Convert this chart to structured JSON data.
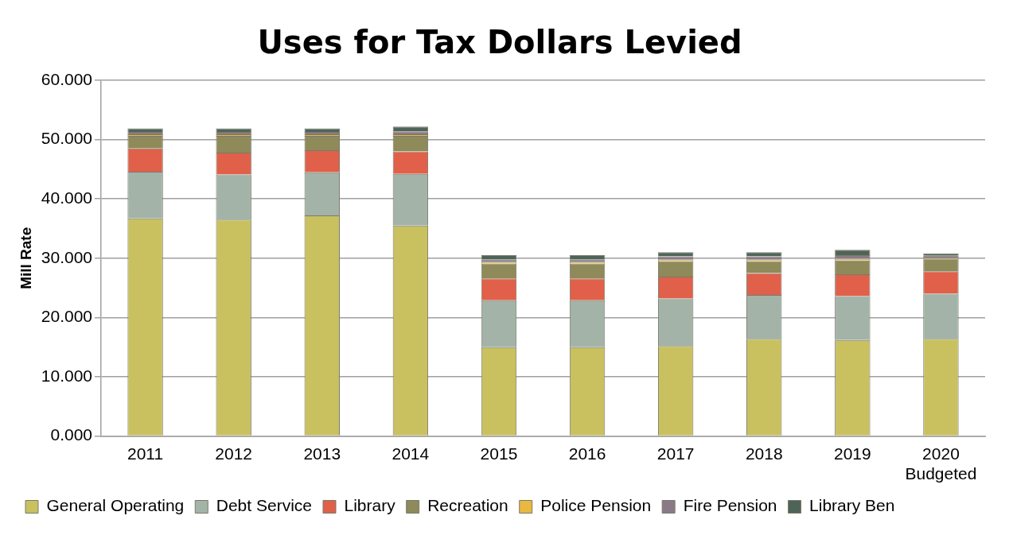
{
  "chart_data": {
    "type": "bar",
    "title": "Uses for Tax Dollars Levied",
    "ylabel": "Mill Rate",
    "stacked": true,
    "grid": "y",
    "legend": "bottom",
    "categories": [
      "2011",
      "2012",
      "2013",
      "2014",
      "2015",
      "2016",
      "2017",
      "2018",
      "2019",
      "2020 Budgeted"
    ],
    "ylim": [
      0,
      60
    ],
    "yticks": [
      {
        "value": 0,
        "label": "0.000"
      },
      {
        "value": 10,
        "label": "10.000"
      },
      {
        "value": 20,
        "label": "20.000"
      },
      {
        "value": 30,
        "label": "30.000"
      },
      {
        "value": 40,
        "label": "40.000"
      },
      {
        "value": 50,
        "label": "50.000"
      },
      {
        "value": 60,
        "label": "60.000"
      }
    ],
    "series": [
      {
        "name": "General Operating",
        "color": "#c9c060",
        "values": [
          36.7,
          36.5,
          37.2,
          35.5,
          15.0,
          15.0,
          15.2,
          16.4,
          16.2,
          16.4
        ]
      },
      {
        "name": "Debt Service",
        "color": "#a3b3a8",
        "values": [
          7.9,
          7.6,
          7.3,
          8.7,
          7.9,
          7.9,
          8.0,
          7.4,
          7.4,
          7.6
        ]
      },
      {
        "name": "Library",
        "color": "#e0604a",
        "values": [
          3.9,
          3.7,
          3.7,
          3.8,
          3.7,
          3.7,
          3.7,
          3.7,
          3.7,
          3.8
        ]
      },
      {
        "name": "Recreation",
        "color": "#8e8a5a",
        "values": [
          2.1,
          2.8,
          2.4,
          2.6,
          2.5,
          2.5,
          2.6,
          2.0,
          2.3,
          2.1
        ]
      },
      {
        "name": "Police Pension",
        "color": "#e8b840",
        "values": [
          0.3,
          0.3,
          0.3,
          0.3,
          0.3,
          0.3,
          0.3,
          0.3,
          0.3,
          0.2
        ]
      },
      {
        "name": "Fire Pension",
        "color": "#8a7a88",
        "values": [
          0.4,
          0.4,
          0.4,
          0.5,
          0.4,
          0.4,
          0.5,
          0.5,
          0.6,
          0.3
        ]
      },
      {
        "name": "Library Ben",
        "color": "#4f6458",
        "values": [
          0.6,
          0.6,
          0.6,
          0.8,
          0.7,
          0.7,
          0.7,
          0.7,
          0.9,
          0.4
        ]
      }
    ]
  }
}
